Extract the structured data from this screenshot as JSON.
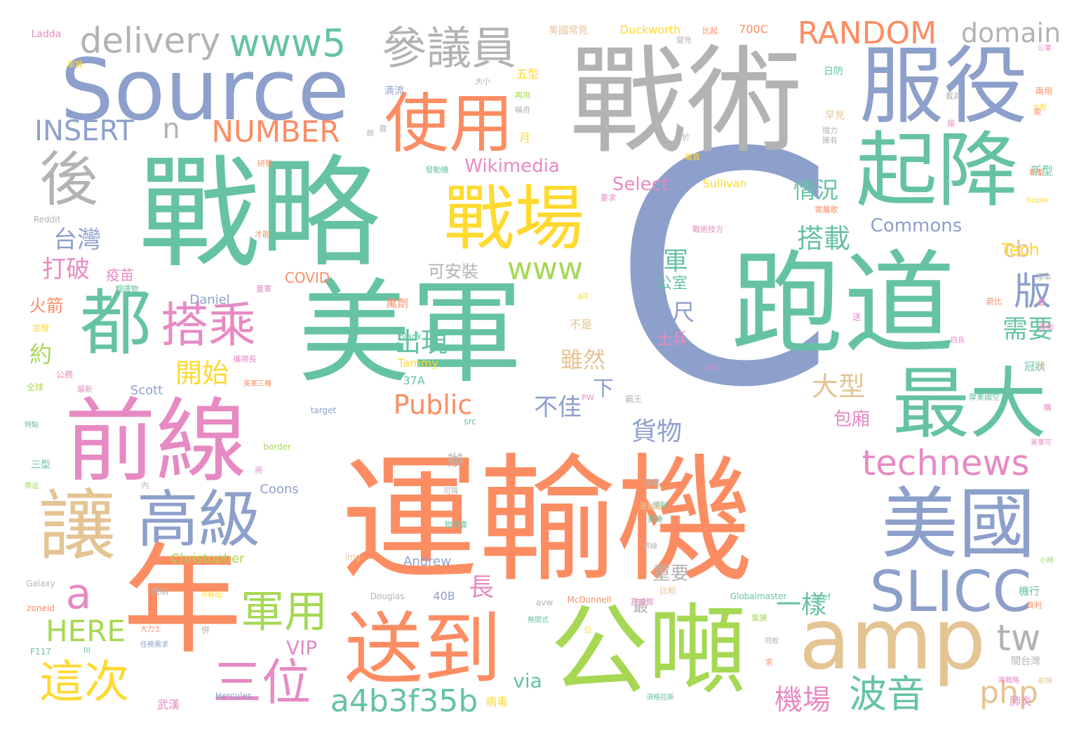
{
  "palette": {
    "green": "#66c2a5",
    "orange": "#fc8d62",
    "blue": "#8da0cb",
    "pink": "#e78ac3",
    "lime": "#a6d854",
    "yellow": "#ffd92f",
    "tan": "#e5c494",
    "gray": "#b3b3b3"
  },
  "words": [
    {
      "text": "運輸機",
      "size": 1.0,
      "color": "orange"
    },
    {
      "text": "C",
      "size": 0.98,
      "color": "blue"
    },
    {
      "text": "戰略",
      "size": 0.9,
      "color": "green"
    },
    {
      "text": "戰術",
      "size": 0.87,
      "color": "gray"
    },
    {
      "text": "美軍",
      "size": 0.85,
      "color": "green"
    },
    {
      "text": "跑道",
      "size": 0.84,
      "color": "green"
    },
    {
      "text": "年",
      "size": 0.82,
      "color": "orange"
    },
    {
      "text": "公噸",
      "size": 0.75,
      "color": "lime"
    },
    {
      "text": "前線",
      "size": 0.7,
      "color": "pink"
    },
    {
      "text": "Source",
      "size": 0.68,
      "color": "blue"
    },
    {
      "text": "服役",
      "size": 0.62,
      "color": "blue"
    },
    {
      "text": "起降",
      "size": 0.6,
      "color": "green"
    },
    {
      "text": "送到",
      "size": 0.58,
      "color": "orange"
    },
    {
      "text": "amp",
      "size": 0.56,
      "color": "tan"
    },
    {
      "text": "美國",
      "size": 0.56,
      "color": "blue"
    },
    {
      "text": "最大",
      "size": 0.55,
      "color": "green"
    },
    {
      "text": "讓",
      "size": 0.54,
      "color": "tan"
    },
    {
      "text": "都",
      "size": 0.52,
      "color": "green"
    },
    {
      "text": "戰場",
      "size": 0.5,
      "color": "yellow"
    },
    {
      "text": "使用",
      "size": 0.48,
      "color": "orange"
    },
    {
      "text": "高級",
      "size": 0.45,
      "color": "blue"
    },
    {
      "text": "後",
      "size": 0.42,
      "color": "gray"
    },
    {
      "text": "SLICC",
      "size": 0.4,
      "color": "blue"
    },
    {
      "text": "參議員",
      "size": 0.36,
      "color": "gray"
    },
    {
      "text": "搭乘",
      "size": 0.35,
      "color": "pink"
    },
    {
      "text": "三位",
      "size": 0.35,
      "color": "pink"
    },
    {
      "text": "這次",
      "size": 0.33,
      "color": "yellow"
    },
    {
      "text": "軍用",
      "size": 0.33,
      "color": "lime"
    },
    {
      "text": "波音",
      "size": 0.3,
      "color": "green"
    },
    {
      "text": "technews",
      "size": 0.28,
      "color": "pink"
    },
    {
      "text": "a4b3f35b",
      "size": 0.28,
      "color": "green"
    },
    {
      "text": "www5",
      "size": 0.28,
      "color": "green"
    },
    {
      "text": "delivery",
      "size": 0.27,
      "color": "gray"
    },
    {
      "text": "RANDOM",
      "size": 0.25,
      "color": "orange"
    },
    {
      "text": "tw",
      "size": 0.26,
      "color": "gray"
    },
    {
      "text": "php",
      "size": 0.24,
      "color": "tan"
    },
    {
      "text": "www",
      "size": 0.24,
      "color": "lime"
    },
    {
      "text": "版",
      "size": 0.3,
      "color": "blue"
    },
    {
      "text": "a",
      "size": 0.28,
      "color": "pink"
    },
    {
      "text": "INSERT",
      "size": 0.24,
      "color": "blue"
    },
    {
      "text": "NUMBER",
      "size": 0.24,
      "color": "orange"
    },
    {
      "text": "n",
      "size": 0.22,
      "color": "gray"
    },
    {
      "text": "domain",
      "size": 0.22,
      "color": "gray"
    },
    {
      "text": "HERE",
      "size": 0.24,
      "color": "lime"
    },
    {
      "text": "Public",
      "size": 0.22,
      "color": "orange"
    },
    {
      "text": "機場",
      "size": 0.24,
      "color": "pink"
    },
    {
      "text": "需要",
      "size": 0.22,
      "color": "green"
    },
    {
      "text": "出現",
      "size": 0.22,
      "color": "green"
    },
    {
      "text": "開始",
      "size": 0.22,
      "color": "yellow"
    },
    {
      "text": "大型",
      "size": 0.22,
      "color": "tan"
    },
    {
      "text": "搭載",
      "size": 0.22,
      "color": "green"
    },
    {
      "text": "情況",
      "size": 0.19,
      "color": "green"
    },
    {
      "text": "打破",
      "size": 0.2,
      "color": "pink"
    },
    {
      "text": "台灣",
      "size": 0.2,
      "color": "blue"
    },
    {
      "text": "一樣",
      "size": 0.21,
      "color": "green"
    },
    {
      "text": "貨物",
      "size": 0.21,
      "color": "blue"
    },
    {
      "text": "不佳",
      "size": 0.2,
      "color": "blue"
    },
    {
      "text": "雖然",
      "size": 0.19,
      "color": "tan"
    },
    {
      "text": "公尺",
      "size": 0.19,
      "color": "blue"
    },
    {
      "text": "cb",
      "size": 0.19,
      "color": "tan"
    },
    {
      "text": "Commons",
      "size": 0.16,
      "color": "blue"
    },
    {
      "text": "Wikimedia",
      "size": 0.15,
      "color": "pink"
    },
    {
      "text": "Select",
      "size": 0.15,
      "color": "pink"
    },
    {
      "text": "Tech",
      "size": 0.15,
      "color": "yellow"
    },
    {
      "text": "VIP",
      "size": 0.16,
      "color": "pink"
    },
    {
      "text": "via",
      "size": 0.16,
      "color": "green"
    },
    {
      "text": "長",
      "size": 0.22,
      "color": "pink"
    },
    {
      "text": "下",
      "size": 0.18,
      "color": "blue"
    },
    {
      "text": "軍",
      "size": 0.22,
      "color": "green"
    },
    {
      "text": "約",
      "size": 0.19,
      "color": "lime"
    },
    {
      "text": "火箭",
      "size": 0.15,
      "color": "orange"
    },
    {
      "text": "包廂",
      "size": 0.16,
      "color": "pink"
    },
    {
      "text": "重要",
      "size": 0.15,
      "color": "gray"
    },
    {
      "text": "可安裝",
      "size": 0.15,
      "color": "gray"
    },
    {
      "text": "公室",
      "size": 0.14,
      "color": "green"
    },
    {
      "text": "士兵",
      "size": 0.14,
      "color": "pink"
    },
    {
      "text": "疫苗",
      "size": 0.12,
      "color": "pink"
    },
    {
      "text": "辦",
      "size": 0.13,
      "color": "gray"
    },
    {
      "text": "最",
      "size": 0.13,
      "color": "gray"
    },
    {
      "text": "COVID",
      "size": 0.12,
      "color": "orange"
    },
    {
      "text": "Daniel",
      "size": 0.11,
      "color": "blue"
    },
    {
      "text": "Scott",
      "size": 0.11,
      "color": "blue"
    },
    {
      "text": "Christopher",
      "size": 0.11,
      "color": "lime"
    },
    {
      "text": "Andrew",
      "size": 0.11,
      "color": "blue"
    },
    {
      "text": "Coons",
      "size": 0.11,
      "color": "blue"
    },
    {
      "text": "Tammy",
      "size": 0.1,
      "color": "yellow"
    },
    {
      "text": "37A",
      "size": 0.1,
      "color": "green"
    },
    {
      "text": "40B",
      "size": 0.1,
      "color": "blue"
    },
    {
      "text": "不是",
      "size": 0.1,
      "color": "tan"
    },
    {
      "text": "萬劑",
      "size": 0.1,
      "color": "orange"
    },
    {
      "text": "新型",
      "size": 0.1,
      "color": "green"
    },
    {
      "text": "肺炎",
      "size": 0.1,
      "color": "pink"
    },
    {
      "text": "病毒",
      "size": 0.1,
      "color": "yellow"
    },
    {
      "text": "武漢",
      "size": 0.1,
      "color": "pink"
    },
    {
      "text": "三型",
      "size": 0.09,
      "color": "green"
    },
    {
      "text": "五型",
      "size": 0.1,
      "color": "yellow"
    },
    {
      "text": "日防",
      "size": 0.09,
      "color": "green"
    },
    {
      "text": "滴流",
      "size": 0.09,
      "color": "blue"
    },
    {
      "text": "月",
      "size": 0.1,
      "color": "yellow"
    },
    {
      "text": "罕見",
      "size": 0.09,
      "color": "tan"
    },
    {
      "text": "Duckworth",
      "size": 0.09,
      "color": "yellow"
    },
    {
      "text": "美國常見",
      "size": 0.09,
      "color": "tan"
    },
    {
      "text": "700C",
      "size": 0.09,
      "color": "orange"
    },
    {
      "text": "Sullivan",
      "size": 0.09,
      "color": "yellow"
    },
    {
      "text": "Ladda",
      "size": 0.08,
      "color": "pink"
    },
    {
      "text": "Reddit",
      "size": 0.07,
      "color": "gray"
    },
    {
      "text": "Galaxy",
      "size": 0.07,
      "color": "gray"
    },
    {
      "text": "zoneid",
      "size": 0.07,
      "color": "orange"
    },
    {
      "text": "F117",
      "size": 0.07,
      "color": "green"
    },
    {
      "text": "Hercules",
      "size": 0.07,
      "color": "blue"
    },
    {
      "text": "Globalmaster",
      "size": 0.07,
      "color": "green"
    },
    {
      "text": "McDonnell",
      "size": 0.07,
      "color": "orange"
    },
    {
      "text": "Douglas",
      "size": 0.07,
      "color": "gray"
    },
    {
      "text": "target",
      "size": 0.07,
      "color": "blue"
    },
    {
      "text": "blank",
      "size": 0.07,
      "color": "green"
    },
    {
      "text": "border",
      "size": 0.07,
      "color": "lime"
    },
    {
      "text": "src",
      "size": 0.07,
      "color": "green"
    },
    {
      "text": "img",
      "size": 0.07,
      "color": "tan"
    },
    {
      "text": "alt",
      "size": 0.07,
      "color": "yellow"
    },
    {
      "text": "href",
      "size": 0.07,
      "color": "green"
    },
    {
      "text": "avw",
      "size": 0.07,
      "color": "gray"
    },
    {
      "text": "Super",
      "size": 0.06,
      "color": "yellow"
    },
    {
      "text": "130J",
      "size": 0.06,
      "color": "pink"
    },
    {
      "text": "PW",
      "size": 0.06,
      "color": "pink"
    },
    {
      "text": "III",
      "size": 0.06,
      "color": "green"
    },
    {
      "text": "ck",
      "size": 0.06,
      "color": "green"
    },
    {
      "text": "機行",
      "size": 0.08,
      "color": "green"
    },
    {
      "text": "冠狀",
      "size": 0.08,
      "color": "green"
    },
    {
      "text": "間台灣",
      "size": 0.08,
      "color": "gray"
    },
    {
      "text": "兩用",
      "size": 0.07,
      "color": "orange"
    },
    {
      "text": "全球",
      "size": 0.07,
      "color": "lime"
    },
    {
      "text": "公務",
      "size": 0.07,
      "color": "pink"
    },
    {
      "text": "並贈",
      "size": 0.07,
      "color": "yellow"
    },
    {
      "text": "唐納",
      "size": 0.07,
      "color": "gray"
    },
    {
      "text": "比較",
      "size": 0.07,
      "color": "tan"
    },
    {
      "text": "霸王",
      "size": 0.07,
      "color": "gray"
    },
    {
      "text": "送",
      "size": 0.07,
      "color": "pink"
    },
    {
      "text": "於",
      "size": 0.06,
      "color": "gray"
    },
    {
      "text": "每異",
      "size": 0.06,
      "color": "yellow"
    },
    {
      "text": "研發",
      "size": 0.06,
      "color": "orange"
    },
    {
      "text": "發動機",
      "size": 0.06,
      "color": "green"
    },
    {
      "text": "要求",
      "size": 0.06,
      "color": "pink"
    },
    {
      "text": "才能",
      "size": 0.06,
      "color": "orange"
    },
    {
      "text": "大小",
      "size": 0.06,
      "color": "gray"
    },
    {
      "text": "再用",
      "size": 0.06,
      "color": "lime"
    },
    {
      "text": "公軍",
      "size": 0.06,
      "color": "pink"
    },
    {
      "text": "大批",
      "size": 0.06,
      "color": "yellow"
    },
    {
      "text": "美軍三種",
      "size": 0.06,
      "color": "orange"
    },
    {
      "text": "美軍可",
      "size": 0.06,
      "color": "pink"
    },
    {
      "text": "大力士",
      "size": 0.06,
      "color": "orange"
    },
    {
      "text": "任務需求",
      "size": 0.06,
      "color": "blue"
    },
    {
      "text": "可輸出",
      "size": 0.06,
      "color": "yellow"
    },
    {
      "text": "無間式",
      "size": 0.06,
      "color": "green"
    },
    {
      "text": "須格拉斯",
      "size": 0.06,
      "color": "green"
    },
    {
      "text": "同款",
      "size": 0.06,
      "color": "gray"
    },
    {
      "text": "航隊",
      "size": 0.06,
      "color": "tan"
    },
    {
      "text": "小時",
      "size": 0.06,
      "color": "lime"
    },
    {
      "text": "四具",
      "size": 0.06,
      "color": "pink"
    },
    {
      "text": "界線",
      "size": 0.06,
      "color": "gray"
    },
    {
      "text": "將戰略",
      "size": 0.06,
      "color": "pink"
    },
    {
      "text": "特點",
      "size": 0.06,
      "color": "green"
    },
    {
      "text": "帶這",
      "size": 0.06,
      "color": "lime"
    },
    {
      "text": "併",
      "size": 0.06,
      "color": "gray"
    },
    {
      "text": "內",
      "size": 0.06,
      "color": "gray"
    },
    {
      "text": "位",
      "size": 0.06,
      "color": "yellow"
    },
    {
      "text": "求",
      "size": 0.06,
      "color": "orange"
    },
    {
      "text": "載",
      "size": 0.06,
      "color": "pink"
    },
    {
      "text": "級",
      "size": 0.06,
      "color": "pink"
    },
    {
      "text": "購",
      "size": 0.06,
      "color": "pink"
    },
    {
      "text": "能",
      "size": 0.06,
      "color": "orange"
    },
    {
      "text": "將",
      "size": 0.06,
      "color": "pink"
    },
    {
      "text": "比起",
      "size": 0.06,
      "color": "orange"
    },
    {
      "text": "變充",
      "size": 0.06,
      "color": "gray"
    },
    {
      "text": "擁有",
      "size": 0.06,
      "color": "gray"
    },
    {
      "text": "厚本",
      "size": 0.06,
      "color": "gray"
    },
    {
      "text": "稱奇",
      "size": 0.06,
      "color": "gray"
    },
    {
      "text": "載具",
      "size": 0.06,
      "color": "gray"
    },
    {
      "text": "便利",
      "size": 0.06,
      "color": "green"
    },
    {
      "text": "蓮爛",
      "size": 0.06,
      "color": "gray"
    },
    {
      "text": "可降",
      "size": 0.06,
      "color": "gray"
    },
    {
      "text": "蓋連",
      "size": 0.06,
      "color": "green"
    },
    {
      "text": "最新",
      "size": 0.06,
      "color": "pink"
    },
    {
      "text": "軍戰",
      "size": 0.06,
      "color": "yellow"
    },
    {
      "text": "蓋軍",
      "size": 0.06,
      "color": "pink"
    },
    {
      "text": "翻譯物",
      "size": 0.06,
      "color": "green"
    },
    {
      "text": "攜帶長",
      "size": 0.06,
      "color": "pink"
    },
    {
      "text": "物資會",
      "size": 0.06,
      "color": "green"
    },
    {
      "text": "葉讀",
      "size": 0.06,
      "color": "lime"
    },
    {
      "text": "真威爾",
      "size": 0.06,
      "color": "pink"
    },
    {
      "text": "罪",
      "size": 0.06,
      "color": "gray"
    },
    {
      "text": "郎",
      "size": 0.06,
      "color": "gray"
    },
    {
      "text": "護衛",
      "size": 0.06,
      "color": "pink"
    },
    {
      "text": "倍",
      "size": 0.06,
      "color": "tan"
    },
    {
      "text": "貢利",
      "size": 0.06,
      "color": "orange"
    },
    {
      "text": "運輸量",
      "size": 0.06,
      "color": "tan"
    },
    {
      "text": "蔚比",
      "size": 0.06,
      "color": "orange"
    },
    {
      "text": "摩美國空",
      "size": 0.06,
      "color": "green"
    },
    {
      "text": "戰術技方",
      "size": 0.06,
      "color": "pink"
    },
    {
      "text": "新型",
      "size": 0.06,
      "color": "orange"
    },
    {
      "text": "需屬歌",
      "size": 0.06,
      "color": "orange"
    },
    {
      "text": "R隊",
      "size": 0.06,
      "color": "blue"
    },
    {
      "text": "擋力",
      "size": 0.06,
      "color": "gray"
    }
  ]
}
